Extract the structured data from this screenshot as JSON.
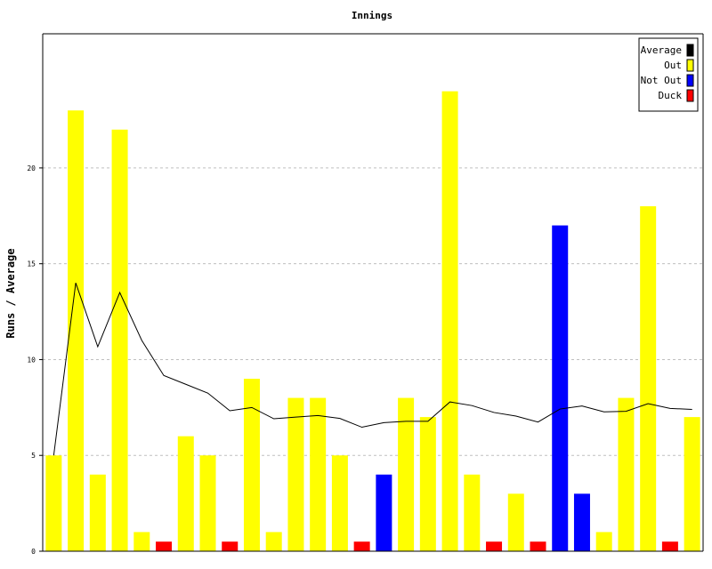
{
  "chart_data": {
    "type": "bar",
    "title": "Innings",
    "ylabel": "Runs / Average",
    "xlabel": "",
    "ylim": [
      0,
      27
    ],
    "yticks": [
      0,
      5,
      10,
      15,
      20
    ],
    "grid": true,
    "legend_position": "top-right",
    "legend": [
      {
        "name": "Average",
        "color": "#000000"
      },
      {
        "name": "Out",
        "color": "#ffff00"
      },
      {
        "name": "Not Out",
        "color": "#0000ff"
      },
      {
        "name": "Duck",
        "color": "#ff0000"
      }
    ],
    "innings": [
      {
        "runs": 5,
        "status": "Out"
      },
      {
        "runs": 23,
        "status": "Out"
      },
      {
        "runs": 4,
        "status": "Out"
      },
      {
        "runs": 22,
        "status": "Out"
      },
      {
        "runs": 1,
        "status": "Out"
      },
      {
        "runs": 0,
        "status": "Duck"
      },
      {
        "runs": 6,
        "status": "Out"
      },
      {
        "runs": 5,
        "status": "Out"
      },
      {
        "runs": 0,
        "status": "Duck"
      },
      {
        "runs": 9,
        "status": "Out"
      },
      {
        "runs": 1,
        "status": "Out"
      },
      {
        "runs": 8,
        "status": "Out"
      },
      {
        "runs": 8,
        "status": "Out"
      },
      {
        "runs": 5,
        "status": "Out"
      },
      {
        "runs": 0,
        "status": "Duck"
      },
      {
        "runs": 4,
        "status": "Not Out"
      },
      {
        "runs": 8,
        "status": "Out"
      },
      {
        "runs": 7,
        "status": "Out"
      },
      {
        "runs": 24,
        "status": "Out"
      },
      {
        "runs": 4,
        "status": "Out"
      },
      {
        "runs": 0,
        "status": "Duck"
      },
      {
        "runs": 3,
        "status": "Out"
      },
      {
        "runs": 0,
        "status": "Duck"
      },
      {
        "runs": 17,
        "status": "Not Out"
      },
      {
        "runs": 3,
        "status": "Not Out"
      },
      {
        "runs": 1,
        "status": "Out"
      },
      {
        "runs": 8,
        "status": "Out"
      },
      {
        "runs": 18,
        "status": "Out"
      },
      {
        "runs": 0,
        "status": "Duck"
      },
      {
        "runs": 7,
        "status": "Out"
      }
    ],
    "average": [
      5,
      14,
      10.67,
      13.5,
      11,
      9.17,
      8.71,
      8.25,
      7.33,
      7.5,
      6.91,
      7,
      7.08,
      6.93,
      6.47,
      6.71,
      6.78,
      6.78,
      7.79,
      7.6,
      7.24,
      7.05,
      6.74,
      7.42,
      7.58,
      7.27,
      7.3,
      7.7,
      7.45,
      7.4
    ]
  }
}
